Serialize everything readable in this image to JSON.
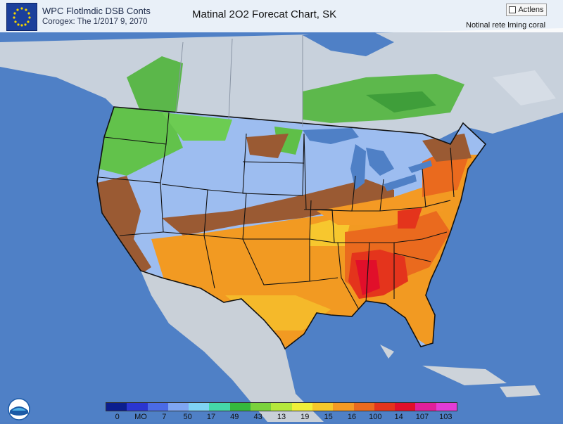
{
  "header": {
    "title": "WPC Flotlmdic DSB Conts",
    "subtitle": "Corogex: The 1/2017 9, 2070",
    "main_title": "Matinal 2O2 Forecat Chart, SK",
    "actions_label": "Actlens",
    "note": "Notinal rete lrning coral"
  },
  "legend": {
    "colors": [
      "#0b1e8f",
      "#2a36d1",
      "#4a6be6",
      "#7fa6f2",
      "#7fd3f4",
      "#45d8a8",
      "#35b83d",
      "#7ad23c",
      "#b5e83d",
      "#f1f03a",
      "#f5c82b",
      "#f49a24",
      "#ea6a1e",
      "#e4341c",
      "#e10f2a",
      "#e01f9a",
      "#e23cd6"
    ],
    "labels": [
      "0",
      "MO",
      "7",
      "50",
      "17",
      "49",
      "43",
      "13",
      "19",
      "15",
      "16",
      "100",
      "14",
      "107",
      "103"
    ]
  },
  "icons": {
    "logo": "eu-stars-logo",
    "agency": "noaa-logo",
    "actions": "checkbox-icon"
  }
}
